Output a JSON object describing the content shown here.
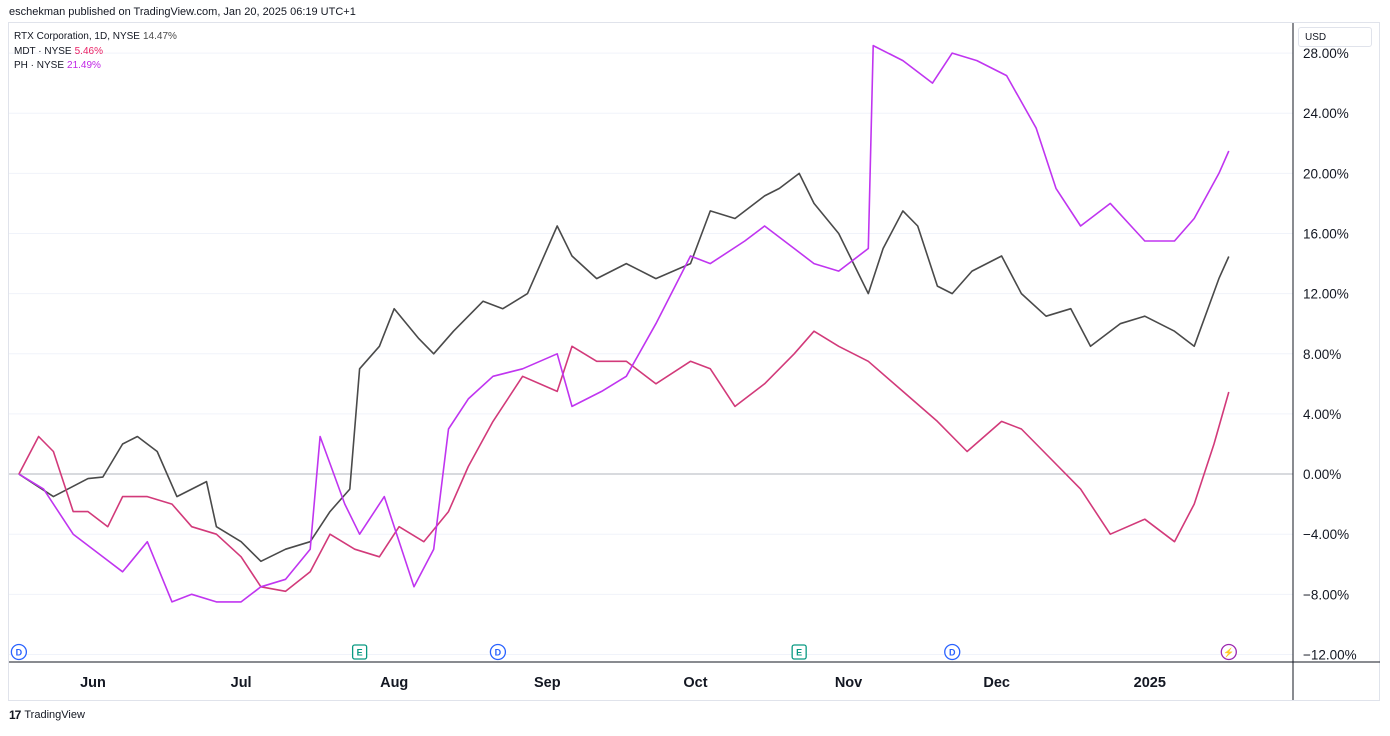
{
  "header": {
    "published": "eschekman published on TradingView.com, Jan 20, 2025 06:19 UTC+1"
  },
  "currency": "USD",
  "footer": {
    "logo_mark": "17",
    "brand": "TradingView"
  },
  "legend": [
    {
      "label": "RTX Corporation, 1D, NYSE",
      "value": "14.47%",
      "color": "#4a4a4a"
    },
    {
      "label": "MDT · NYSE",
      "value": "5.46%",
      "color": "#e91e63"
    },
    {
      "label": "PH · NYSE",
      "value": "21.49%",
      "color": "#c026e6"
    }
  ],
  "colors": {
    "RTX": "#4a4a4a",
    "MDT": "#d23a7a",
    "PH": "#c035f0",
    "grid": "#f0f3fa",
    "zero": "#b2b5be"
  },
  "events": [
    {
      "type": "D",
      "date": "2024-05-17",
      "color": "#2962ff",
      "icon": "dividend-icon"
    },
    {
      "type": "E",
      "date": "2024-07-25",
      "color": "#089981",
      "icon": "earnings-icon"
    },
    {
      "type": "D",
      "date": "2024-08-22",
      "color": "#2962ff",
      "icon": "dividend-icon"
    },
    {
      "type": "E",
      "date": "2024-10-22",
      "color": "#089981",
      "icon": "earnings-icon"
    },
    {
      "type": "D",
      "date": "2024-11-22",
      "color": "#2962ff",
      "icon": "dividend-icon"
    },
    {
      "type": "⚡",
      "date": "2025-01-17",
      "color": "#9c27b0",
      "icon": "split-icon"
    }
  ],
  "chart_data": {
    "type": "line",
    "title": "",
    "xlabel": "",
    "ylabel": "",
    "x_axis_type": "date",
    "x_ticks": [
      {
        "label": "Jun",
        "date": "2024-06-01"
      },
      {
        "label": "Jul",
        "date": "2024-07-01"
      },
      {
        "label": "Aug",
        "date": "2024-08-01"
      },
      {
        "label": "Sep",
        "date": "2024-09-01"
      },
      {
        "label": "Oct",
        "date": "2024-10-01"
      },
      {
        "label": "Nov",
        "date": "2024-11-01"
      },
      {
        "label": "Dec",
        "date": "2024-12-01"
      },
      {
        "label": "2025",
        "date": "2025-01-01"
      }
    ],
    "y_ticks": [
      "28.00%",
      "24.00%",
      "20.00%",
      "16.00%",
      "12.00%",
      "8.00%",
      "4.00%",
      "0.00%",
      "−4.00%",
      "−8.00%",
      "−12.00%"
    ],
    "y_tick_values": [
      28,
      24,
      20,
      16,
      12,
      8,
      4,
      0,
      -4,
      -8,
      -12
    ],
    "ylim": [
      -12.5,
      30
    ],
    "xlim": [
      "2024-05-15",
      "2025-01-30"
    ],
    "grid": true,
    "series": [
      {
        "name": "RTX Corporation, 1D, NYSE",
        "color": "#4a4a4a",
        "points": [
          [
            "2024-05-17",
            0
          ],
          [
            "2024-05-24",
            -1.5
          ],
          [
            "2024-05-31",
            -0.3
          ],
          [
            "2024-06-03",
            -0.2
          ],
          [
            "2024-06-07",
            2.0
          ],
          [
            "2024-06-10",
            2.5
          ],
          [
            "2024-06-14",
            1.5
          ],
          [
            "2024-06-18",
            -1.5
          ],
          [
            "2024-06-24",
            -0.5
          ],
          [
            "2024-06-26",
            -3.5
          ],
          [
            "2024-07-01",
            -4.5
          ],
          [
            "2024-07-05",
            -5.8
          ],
          [
            "2024-07-10",
            -5.0
          ],
          [
            "2024-07-15",
            -4.5
          ],
          [
            "2024-07-19",
            -2.5
          ],
          [
            "2024-07-23",
            -1.0
          ],
          [
            "2024-07-25",
            7.0
          ],
          [
            "2024-07-29",
            8.5
          ],
          [
            "2024-08-01",
            11.0
          ],
          [
            "2024-08-06",
            9.0
          ],
          [
            "2024-08-09",
            8.0
          ],
          [
            "2024-08-13",
            9.5
          ],
          [
            "2024-08-19",
            11.5
          ],
          [
            "2024-08-23",
            11.0
          ],
          [
            "2024-08-28",
            12.0
          ],
          [
            "2024-09-03",
            16.5
          ],
          [
            "2024-09-06",
            14.5
          ],
          [
            "2024-09-11",
            13.0
          ],
          [
            "2024-09-17",
            14.0
          ],
          [
            "2024-09-23",
            13.0
          ],
          [
            "2024-09-30",
            14.0
          ],
          [
            "2024-10-04",
            17.5
          ],
          [
            "2024-10-09",
            17.0
          ],
          [
            "2024-10-15",
            18.5
          ],
          [
            "2024-10-18",
            19.0
          ],
          [
            "2024-10-22",
            20.0
          ],
          [
            "2024-10-25",
            18.0
          ],
          [
            "2024-10-30",
            16.0
          ],
          [
            "2024-11-05",
            12.0
          ],
          [
            "2024-11-08",
            15.0
          ],
          [
            "2024-11-12",
            17.5
          ],
          [
            "2024-11-15",
            16.5
          ],
          [
            "2024-11-19",
            12.5
          ],
          [
            "2024-11-22",
            12.0
          ],
          [
            "2024-11-26",
            13.5
          ],
          [
            "2024-12-02",
            14.5
          ],
          [
            "2024-12-06",
            12.0
          ],
          [
            "2024-12-11",
            10.5
          ],
          [
            "2024-12-16",
            11.0
          ],
          [
            "2024-12-20",
            8.5
          ],
          [
            "2024-12-26",
            10.0
          ],
          [
            "2024-12-31",
            10.5
          ],
          [
            "2025-01-06",
            9.5
          ],
          [
            "2025-01-10",
            8.5
          ],
          [
            "2025-01-15",
            13.0
          ],
          [
            "2025-01-17",
            14.47
          ]
        ]
      },
      {
        "name": "MDT · NYSE",
        "color": "#d23a7a",
        "points": [
          [
            "2024-05-17",
            0
          ],
          [
            "2024-05-21",
            2.5
          ],
          [
            "2024-05-24",
            1.5
          ],
          [
            "2024-05-28",
            -2.5
          ],
          [
            "2024-05-31",
            -2.5
          ],
          [
            "2024-06-04",
            -3.5
          ],
          [
            "2024-06-07",
            -1.5
          ],
          [
            "2024-06-12",
            -1.5
          ],
          [
            "2024-06-17",
            -2.0
          ],
          [
            "2024-06-21",
            -3.5
          ],
          [
            "2024-06-26",
            -4.0
          ],
          [
            "2024-07-01",
            -5.5
          ],
          [
            "2024-07-05",
            -7.5
          ],
          [
            "2024-07-10",
            -7.8
          ],
          [
            "2024-07-15",
            -6.5
          ],
          [
            "2024-07-19",
            -4.0
          ],
          [
            "2024-07-24",
            -5.0
          ],
          [
            "2024-07-29",
            -5.5
          ],
          [
            "2024-08-02",
            -3.5
          ],
          [
            "2024-08-07",
            -4.5
          ],
          [
            "2024-08-12",
            -2.5
          ],
          [
            "2024-08-16",
            0.5
          ],
          [
            "2024-08-21",
            3.5
          ],
          [
            "2024-08-27",
            6.5
          ],
          [
            "2024-09-03",
            5.5
          ],
          [
            "2024-09-06",
            8.5
          ],
          [
            "2024-09-11",
            7.5
          ],
          [
            "2024-09-17",
            7.5
          ],
          [
            "2024-09-23",
            6.0
          ],
          [
            "2024-09-30",
            7.5
          ],
          [
            "2024-10-04",
            7.0
          ],
          [
            "2024-10-09",
            4.5
          ],
          [
            "2024-10-15",
            6.0
          ],
          [
            "2024-10-21",
            8.0
          ],
          [
            "2024-10-25",
            9.5
          ],
          [
            "2024-10-30",
            8.5
          ],
          [
            "2024-11-05",
            7.5
          ],
          [
            "2024-11-12",
            5.5
          ],
          [
            "2024-11-19",
            3.5
          ],
          [
            "2024-11-25",
            1.5
          ],
          [
            "2024-12-02",
            3.5
          ],
          [
            "2024-12-06",
            3.0
          ],
          [
            "2024-12-12",
            1.0
          ],
          [
            "2024-12-18",
            -1.0
          ],
          [
            "2024-12-24",
            -4.0
          ],
          [
            "2024-12-31",
            -3.0
          ],
          [
            "2025-01-06",
            -4.5
          ],
          [
            "2025-01-10",
            -2.0
          ],
          [
            "2025-01-14",
            2.0
          ],
          [
            "2025-01-17",
            5.46
          ]
        ]
      },
      {
        "name": "PH · NYSE",
        "color": "#c035f0",
        "points": [
          [
            "2024-05-17",
            0
          ],
          [
            "2024-05-22",
            -1.0
          ],
          [
            "2024-05-28",
            -4.0
          ],
          [
            "2024-06-03",
            -5.5
          ],
          [
            "2024-06-07",
            -6.5
          ],
          [
            "2024-06-12",
            -4.5
          ],
          [
            "2024-06-17",
            -8.5
          ],
          [
            "2024-06-21",
            -8.0
          ],
          [
            "2024-06-26",
            -8.5
          ],
          [
            "2024-07-01",
            -8.5
          ],
          [
            "2024-07-05",
            -7.5
          ],
          [
            "2024-07-10",
            -7.0
          ],
          [
            "2024-07-15",
            -5.0
          ],
          [
            "2024-07-17",
            2.5
          ],
          [
            "2024-07-22",
            -2.0
          ],
          [
            "2024-07-25",
            -4.0
          ],
          [
            "2024-07-30",
            -1.5
          ],
          [
            "2024-08-05",
            -7.5
          ],
          [
            "2024-08-09",
            -5.0
          ],
          [
            "2024-08-12",
            3.0
          ],
          [
            "2024-08-16",
            5.0
          ],
          [
            "2024-08-21",
            6.5
          ],
          [
            "2024-08-27",
            7.0
          ],
          [
            "2024-09-03",
            8.0
          ],
          [
            "2024-09-06",
            4.5
          ],
          [
            "2024-09-12",
            5.5
          ],
          [
            "2024-09-17",
            6.5
          ],
          [
            "2024-09-23",
            10.0
          ],
          [
            "2024-09-30",
            14.5
          ],
          [
            "2024-10-04",
            14.0
          ],
          [
            "2024-10-11",
            15.5
          ],
          [
            "2024-10-15",
            16.5
          ],
          [
            "2024-10-21",
            15.0
          ],
          [
            "2024-10-25",
            14.0
          ],
          [
            "2024-10-30",
            13.5
          ],
          [
            "2024-11-05",
            15.0
          ],
          [
            "2024-11-06",
            28.5
          ],
          [
            "2024-11-12",
            27.5
          ],
          [
            "2024-11-18",
            26.0
          ],
          [
            "2024-11-22",
            28.0
          ],
          [
            "2024-11-27",
            27.5
          ],
          [
            "2024-12-03",
            26.5
          ],
          [
            "2024-12-09",
            23.0
          ],
          [
            "2024-12-13",
            19.0
          ],
          [
            "2024-12-18",
            16.5
          ],
          [
            "2024-12-24",
            18.0
          ],
          [
            "2024-12-31",
            15.5
          ],
          [
            "2025-01-06",
            15.5
          ],
          [
            "2025-01-10",
            17.0
          ],
          [
            "2025-01-15",
            20.0
          ],
          [
            "2025-01-17",
            21.49
          ]
        ]
      }
    ]
  }
}
